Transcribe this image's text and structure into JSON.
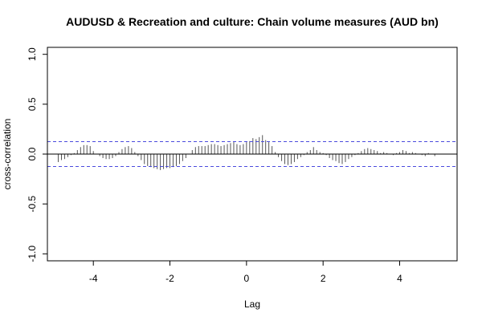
{
  "chart_data": {
    "type": "bar",
    "title": "AUDUSD & Recreation and culture: Chain volume measures (AUD bn)",
    "xlabel": "Lag",
    "ylabel": "cross-correlation",
    "xlim": [
      -5.2,
      5.5
    ],
    "ylim": [
      -1.07,
      1.07
    ],
    "x_ticks": [
      -4,
      -2,
      0,
      2,
      4
    ],
    "y_ticks": [
      -1.0,
      -0.5,
      0.0,
      0.5,
      1.0
    ],
    "x_tick_labels": [
      "-4",
      "-2",
      "0",
      "2",
      "4"
    ],
    "y_tick_labels": [
      "-1.0",
      "-0.5",
      "0.0",
      "0.5",
      "1.0"
    ],
    "confidence_limit": 0.125,
    "bar_color": "#555555",
    "ci_color": "#4b4bdd",
    "x": [
      -4.917,
      -4.833,
      -4.75,
      -4.667,
      -4.583,
      -4.5,
      -4.417,
      -4.333,
      -4.25,
      -4.167,
      -4.083,
      -4,
      -3.917,
      -3.833,
      -3.75,
      -3.667,
      -3.583,
      -3.5,
      -3.417,
      -3.333,
      -3.25,
      -3.167,
      -3.083,
      -3,
      -2.917,
      -2.833,
      -2.75,
      -2.667,
      -2.583,
      -2.5,
      -2.417,
      -2.333,
      -2.25,
      -2.167,
      -2.083,
      -2,
      -1.917,
      -1.833,
      -1.75,
      -1.667,
      -1.583,
      -1.5,
      -1.417,
      -1.333,
      -1.25,
      -1.167,
      -1.083,
      -1,
      -0.917,
      -0.833,
      -0.75,
      -0.667,
      -0.583,
      -0.5,
      -0.417,
      -0.333,
      -0.25,
      -0.167,
      -0.083,
      0,
      0.083,
      0.167,
      0.25,
      0.333,
      0.417,
      0.5,
      0.583,
      0.667,
      0.75,
      0.833,
      0.917,
      1,
      1.083,
      1.167,
      1.25,
      1.333,
      1.417,
      1.5,
      1.583,
      1.667,
      1.75,
      1.833,
      1.917,
      2,
      2.083,
      2.167,
      2.25,
      2.333,
      2.417,
      2.5,
      2.583,
      2.667,
      2.75,
      2.833,
      2.917,
      3,
      3.083,
      3.167,
      3.25,
      3.333,
      3.417,
      3.5,
      3.583,
      3.667,
      3.75,
      3.833,
      3.917,
      4,
      4.083,
      4.167,
      4.25,
      4.333,
      4.417,
      4.5,
      4.583,
      4.667,
      4.75,
      4.833,
      4.917
    ],
    "values": [
      -0.08,
      -0.06,
      -0.05,
      -0.03,
      -0.01,
      0.01,
      0.04,
      0.07,
      0.09,
      0.09,
      0.08,
      0.03,
      0,
      -0.02,
      -0.04,
      -0.05,
      -0.05,
      -0.04,
      -0.02,
      0.02,
      0.05,
      0.07,
      0.08,
      0.06,
      0.02,
      -0.02,
      -0.06,
      -0.1,
      -0.12,
      -0.13,
      -0.14,
      -0.15,
      -0.16,
      -0.15,
      -0.14,
      -0.14,
      -0.13,
      -0.12,
      -0.1,
      -0.07,
      -0.04,
      0,
      0.04,
      0.07,
      0.08,
      0.08,
      0.08,
      0.09,
      0.1,
      0.1,
      0.09,
      0.08,
      0.09,
      0.1,
      0.11,
      0.12,
      0.1,
      0.09,
      0.1,
      0.12,
      0.13,
      0.16,
      0.15,
      0.17,
      0.19,
      0.14,
      0.12,
      0.08,
      0.02,
      -0.03,
      -0.07,
      -0.1,
      -0.11,
      -0.1,
      -0.08,
      -0.05,
      -0.03,
      -0.01,
      0.02,
      0.04,
      0.07,
      0.04,
      0.02,
      0.01,
      -0.01,
      -0.04,
      -0.06,
      -0.07,
      -0.09,
      -0.1,
      -0.08,
      -0.05,
      -0.03,
      -0.01,
      0.01,
      0.03,
      0.05,
      0.06,
      0.05,
      0.04,
      0.03,
      0.01,
      0.02,
      0.01,
      0,
      -0.01,
      0.01,
      0.02,
      0.04,
      0.03,
      0.01,
      0.02,
      0.01,
      0,
      -0.01,
      -0.02,
      0.01,
      0,
      -0.02
    ]
  }
}
